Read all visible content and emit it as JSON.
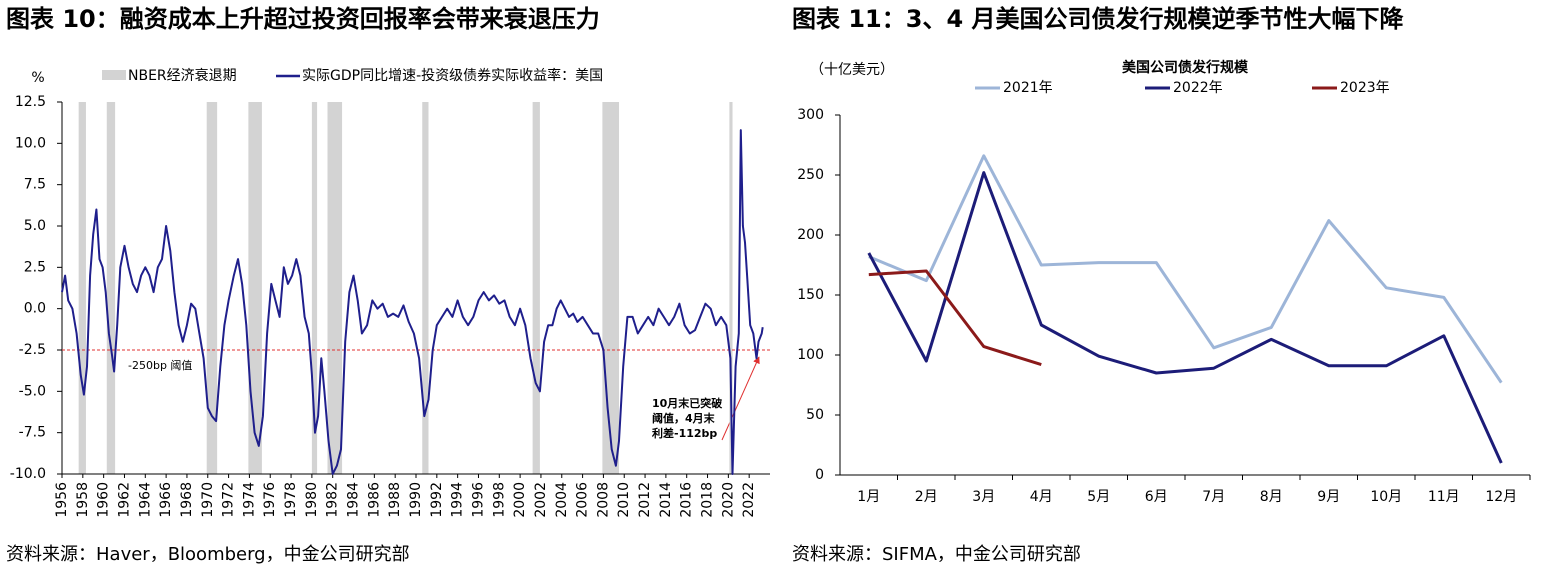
{
  "chart_data": [
    {
      "type": "line",
      "title": "图表 10：融资成本上升超过投资回报率会带来衰退压力",
      "source": "资料来源：Haver，Bloomberg，中金公司研究部",
      "y_unit": "%",
      "xlim": [
        1956,
        2024
      ],
      "xticks": [
        1956,
        1958,
        1960,
        1962,
        1964,
        1966,
        1968,
        1970,
        1972,
        1974,
        1976,
        1978,
        1980,
        1982,
        1984,
        1986,
        1988,
        1990,
        1992,
        1994,
        1996,
        1998,
        2000,
        2002,
        2004,
        2006,
        2008,
        2010,
        2012,
        2014,
        2016,
        2018,
        2020,
        2022
      ],
      "ylim": [
        -10,
        12.5
      ],
      "yticks": [
        {
          "value": -10,
          "label": "-10.0"
        },
        -7.5,
        {
          "value": -5,
          "label": "-5.0"
        },
        -2.5,
        {
          "value": 0,
          "label": "0.0"
        },
        2.5,
        {
          "value": 5,
          "label": "5.0"
        },
        7.5,
        {
          "value": 10,
          "label": "10.0"
        },
        12.5
      ],
      "shade_name": "NBER经济衰退期",
      "shade_color": "#d3d3d3",
      "recessions": [
        [
          1957.6,
          1958.3
        ],
        [
          1960.3,
          1961.1
        ],
        [
          1969.9,
          1970.9
        ],
        [
          1973.9,
          1975.2
        ],
        [
          1980.0,
          1980.5
        ],
        [
          1981.5,
          1982.9
        ],
        [
          1990.6,
          1991.2
        ],
        [
          2001.2,
          2001.9
        ],
        [
          2007.9,
          2009.5
        ],
        [
          2020.1,
          2020.4
        ]
      ],
      "threshold": -2.5,
      "threshold_label": "-250bp 阈值",
      "threshold_color": "#e03030",
      "annotation": [
        "10月末已突破",
        "阈值，4月末",
        "利差-112bp"
      ],
      "x": [
        1956.0,
        1956.3,
        1956.6,
        1957.0,
        1957.4,
        1957.8,
        1958.1,
        1958.4,
        1958.7,
        1959.0,
        1959.3,
        1959.6,
        1959.9,
        1960.2,
        1960.5,
        1960.8,
        1961.0,
        1961.3,
        1961.6,
        1962.0,
        1962.4,
        1962.8,
        1963.2,
        1963.6,
        1964.0,
        1964.4,
        1964.8,
        1965.2,
        1965.6,
        1966.0,
        1966.4,
        1966.8,
        1967.2,
        1967.6,
        1968.0,
        1968.4,
        1968.8,
        1969.2,
        1969.6,
        1970.0,
        1970.4,
        1970.8,
        1971.2,
        1971.6,
        1972.0,
        1972.5,
        1972.9,
        1973.3,
        1973.7,
        1974.1,
        1974.5,
        1974.9,
        1975.3,
        1975.7,
        1976.1,
        1976.5,
        1976.9,
        1977.3,
        1977.7,
        1978.1,
        1978.5,
        1978.9,
        1979.3,
        1979.7,
        1980.0,
        1980.3,
        1980.6,
        1980.9,
        1981.2,
        1981.6,
        1982.0,
        1982.4,
        1982.8,
        1983.2,
        1983.6,
        1984.0,
        1984.4,
        1984.8,
        1985.3,
        1985.8,
        1986.3,
        1986.8,
        1987.3,
        1987.8,
        1988.3,
        1988.8,
        1989.3,
        1989.8,
        1990.3,
        1990.8,
        1991.2,
        1991.6,
        1992.0,
        1992.5,
        1993.0,
        1993.5,
        1994.0,
        1994.5,
        1995.0,
        1995.5,
        1996.0,
        1996.5,
        1997.0,
        1997.5,
        1998.0,
        1998.5,
        1999.0,
        1999.5,
        2000.0,
        2000.5,
        2001.0,
        2001.5,
        2001.9,
        2002.3,
        2002.7,
        2003.1,
        2003.5,
        2003.9,
        2004.3,
        2004.7,
        2005.1,
        2005.5,
        2006.0,
        2006.5,
        2007.0,
        2007.5,
        2008.0,
        2008.4,
        2008.8,
        2009.2,
        2009.5,
        2009.9,
        2010.3,
        2010.8,
        2011.3,
        2011.8,
        2012.3,
        2012.8,
        2013.3,
        2013.8,
        2014.3,
        2014.8,
        2015.3,
        2015.8,
        2016.3,
        2016.8,
        2017.3,
        2017.8,
        2018.3,
        2018.8,
        2019.3,
        2019.8,
        2020.2,
        2020.4,
        2020.7,
        2021.0,
        2021.2,
        2021.4,
        2021.6,
        2021.8,
        2022.1,
        2022.4,
        2022.7,
        2022.9,
        2023.2,
        2023.3
      ],
      "series": [
        {
          "name": "实际GDP同比增速-投资级债券实际收益率：美国",
          "color": "#1f1f8c",
          "values": [
            1.0,
            2.0,
            0.5,
            0.0,
            -1.5,
            -4.0,
            -5.2,
            -3.5,
            2.0,
            4.5,
            6.0,
            3.0,
            2.5,
            1.0,
            -1.5,
            -2.8,
            -3.8,
            -1.0,
            2.5,
            3.8,
            2.5,
            1.5,
            1.0,
            2.0,
            2.5,
            2.0,
            1.0,
            2.5,
            3.0,
            5.0,
            3.5,
            1.0,
            -1.0,
            -2.0,
            -1.0,
            0.3,
            0.0,
            -1.5,
            -3.0,
            -6.0,
            -6.5,
            -6.8,
            -3.5,
            -1.0,
            0.5,
            2.0,
            3.0,
            1.5,
            -1.0,
            -5.0,
            -7.5,
            -8.3,
            -6.5,
            -1.5,
            1.5,
            0.5,
            -0.5,
            2.5,
            1.5,
            2.0,
            3.0,
            2.0,
            -0.5,
            -1.5,
            -4.0,
            -7.5,
            -6.5,
            -3.0,
            -5.0,
            -8.0,
            -10.0,
            -9.5,
            -8.5,
            -2.0,
            1.0,
            2.0,
            0.5,
            -1.5,
            -1.0,
            0.5,
            0.0,
            0.3,
            -0.5,
            -0.3,
            -0.5,
            0.2,
            -0.8,
            -1.5,
            -3.0,
            -6.5,
            -5.5,
            -2.5,
            -1.0,
            -0.5,
            0.0,
            -0.5,
            0.5,
            -0.5,
            -1.0,
            -0.5,
            0.5,
            1.0,
            0.5,
            0.8,
            0.3,
            0.5,
            -0.5,
            -1.0,
            0.0,
            -1.0,
            -3.0,
            -4.5,
            -5.0,
            -2.0,
            -1.0,
            -1.0,
            0.0,
            0.5,
            0.0,
            -0.5,
            -0.3,
            -0.8,
            -0.5,
            -1.0,
            -1.5,
            -1.5,
            -2.5,
            -6.0,
            -8.5,
            -9.5,
            -8.0,
            -3.5,
            -0.5,
            -0.5,
            -1.5,
            -1.0,
            -0.5,
            -1.0,
            0.0,
            -0.5,
            -1.0,
            -0.5,
            0.3,
            -1.0,
            -1.5,
            -1.3,
            -0.5,
            0.3,
            0.0,
            -1.0,
            -0.5,
            -1.0,
            -3.0,
            -10.0,
            -3.5,
            -1.5,
            10.8,
            5.0,
            4.0,
            2.0,
            -1.0,
            -1.5,
            -3.0,
            -2.0,
            -1.5,
            -1.12
          ]
        }
      ]
    },
    {
      "type": "line",
      "title": "图表 11：3、4 月美国公司债发行规模逆季节性大幅下降",
      "source": "资料来源：SIFMA，中金公司研究部",
      "subtitle": "美国公司债发行规模",
      "y_unit": "（十亿美元）",
      "categories": [
        "1月",
        "2月",
        "3月",
        "4月",
        "5月",
        "6月",
        "7月",
        "8月",
        "9月",
        "10月",
        "11月",
        "12月"
      ],
      "ylim": [
        0,
        300
      ],
      "yticks": [
        0,
        50,
        100,
        150,
        200,
        250,
        300
      ],
      "series": [
        {
          "name": "2021年",
          "color": "#9db5d8",
          "values": [
            182,
            162,
            266,
            175,
            177,
            177,
            106,
            123,
            212,
            156,
            148,
            77
          ]
        },
        {
          "name": "2022年",
          "color": "#1c1c78",
          "values": [
            185,
            95,
            252,
            125,
            99,
            85,
            89,
            113,
            91,
            91,
            116,
            10
          ]
        },
        {
          "name": "2023年",
          "color": "#8b1a1a",
          "values": [
            167,
            170,
            107,
            92,
            null,
            null,
            null,
            null,
            null,
            null,
            null,
            null
          ]
        }
      ]
    }
  ]
}
